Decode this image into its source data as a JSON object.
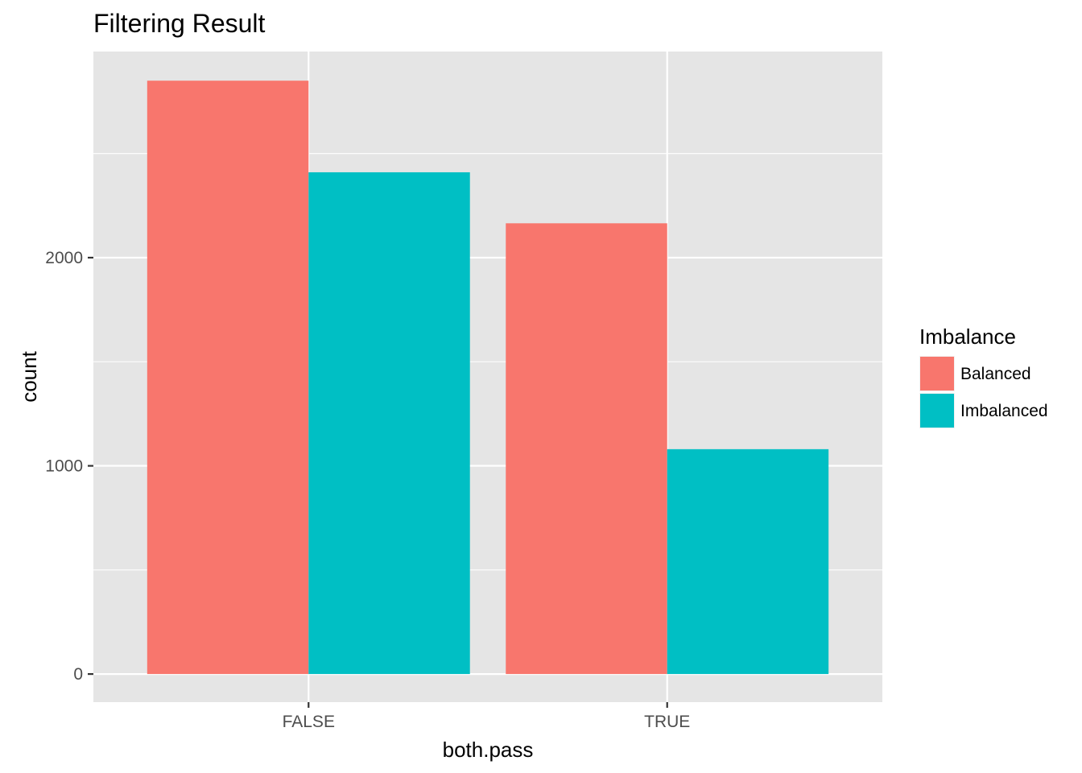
{
  "chart_data": {
    "type": "bar",
    "title": "Filtering Result",
    "xlabel": "both.pass",
    "ylabel": "count",
    "categories": [
      "FALSE",
      "TRUE"
    ],
    "series": [
      {
        "name": "Balanced",
        "values": [
          2850,
          2165
        ],
        "color": "#F8766D"
      },
      {
        "name": "Imbalanced",
        "values": [
          2410,
          1080
        ],
        "color": "#00BFC4"
      }
    ],
    "ylim": [
      -135,
      2990
    ],
    "yticks": [
      0,
      1000,
      2000
    ],
    "ytick_labels": [
      "0",
      "1000",
      "2000"
    ],
    "grid": true,
    "legend": {
      "title": "Imbalance",
      "position": "right"
    },
    "panel_background": "#e5e5e5",
    "grid_color": "#ffffff"
  }
}
